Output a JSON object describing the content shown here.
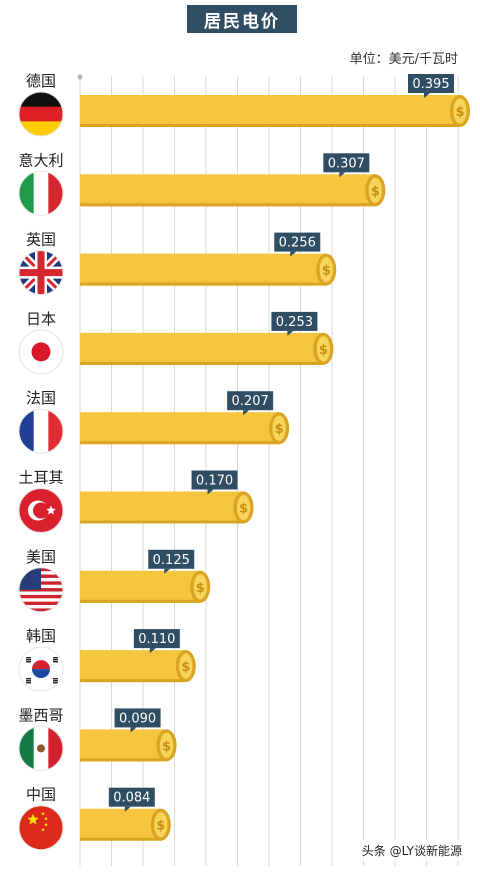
{
  "title": "居民电价",
  "unit_label": "单位：美元/千瓦时",
  "watermark": "头条 @LY谈新能源",
  "colors": {
    "bar": "#f4c53d",
    "bar_edge": "#d9a422",
    "value_box": "#2f4d63",
    "grid": "#d8d8d8"
  },
  "chart_data": {
    "type": "bar",
    "orientation": "horizontal",
    "categories": [
      "德国",
      "意大利",
      "英国",
      "日本",
      "法国",
      "土耳其",
      "美国",
      "韩国",
      "墨西哥",
      "中国"
    ],
    "values": [
      0.395,
      0.307,
      0.256,
      0.253,
      0.207,
      0.17,
      0.125,
      0.11,
      0.09,
      0.084
    ],
    "value_labels": [
      "0.395",
      "0.307",
      "0.256",
      "0.253",
      "0.207",
      "0.170",
      "0.125",
      "0.110",
      "0.090",
      "0.084"
    ],
    "flags": [
      "germany-flag-icon",
      "italy-flag-icon",
      "uk-flag-icon",
      "japan-flag-icon",
      "france-flag-icon",
      "turkey-flag-icon",
      "usa-flag-icon",
      "korea-flag-icon",
      "mexico-flag-icon",
      "china-flag-icon"
    ],
    "coin_symbol": "$",
    "xlim": [
      0,
      0.4
    ],
    "grid": true
  }
}
